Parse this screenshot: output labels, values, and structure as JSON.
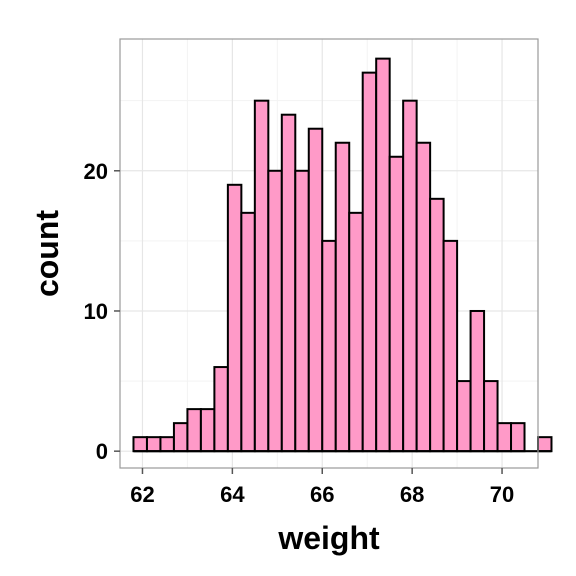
{
  "chart_data": {
    "type": "bar",
    "title": "",
    "xlabel": "weight",
    "ylabel": "count",
    "xlim": [
      61.5,
      70.8
    ],
    "ylim": [
      -1.2,
      29.4
    ],
    "x_ticks": [
      62,
      64,
      66,
      68,
      70
    ],
    "y_ticks": [
      0,
      10,
      20
    ],
    "grid": true,
    "legend": "none",
    "bin_start": 61.8,
    "bin_width": 0.3,
    "counts": [
      1,
      1,
      1,
      2,
      3,
      3,
      6,
      19,
      17,
      25,
      20,
      24,
      20,
      23,
      15,
      22,
      17,
      27,
      28,
      21,
      25,
      22,
      18,
      15,
      5,
      10,
      5,
      2,
      2,
      0,
      1
    ],
    "colors": {
      "bar_fill": "#ff9ac8",
      "bar_stroke": "#000000",
      "panel_border": "#9a9a9a",
      "grid_major": "#e6e6e6",
      "grid_minor": "#f3f3f3",
      "baseline": "#000000"
    }
  }
}
